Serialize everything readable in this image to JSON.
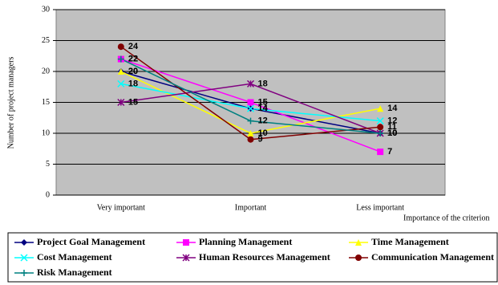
{
  "chart_data": {
    "type": "line",
    "ylabel": "Number of project managers",
    "xlabel": "Importance of the criterion",
    "categories": [
      "Very important",
      "Important",
      "Less important"
    ],
    "ylim": [
      0,
      30
    ],
    "yticks": [
      0,
      5,
      10,
      15,
      20,
      25,
      30
    ],
    "grid": true,
    "series": [
      {
        "name": "Project Goal Management",
        "color": "#000080",
        "marker": "diamond",
        "values": [
          20,
          14,
          10
        ]
      },
      {
        "name": "Planning Management",
        "color": "#ff00ff",
        "marker": "square",
        "values": [
          22,
          15,
          7
        ]
      },
      {
        "name": "Time Management",
        "color": "#ffff00",
        "marker": "triangle",
        "values": [
          20,
          10,
          14
        ]
      },
      {
        "name": "Cost Management",
        "color": "#00ffff",
        "marker": "x",
        "values": [
          18,
          14,
          12
        ]
      },
      {
        "name": "Human Resources Management",
        "color": "#800080",
        "marker": "asterisk",
        "values": [
          15,
          18,
          10
        ]
      },
      {
        "name": "Communication Management",
        "color": "#800000",
        "marker": "circle",
        "values": [
          24,
          9,
          11
        ]
      },
      {
        "name": "Risk Management",
        "color": "#008080",
        "marker": "plus",
        "values": [
          22,
          12,
          10
        ]
      }
    ]
  }
}
